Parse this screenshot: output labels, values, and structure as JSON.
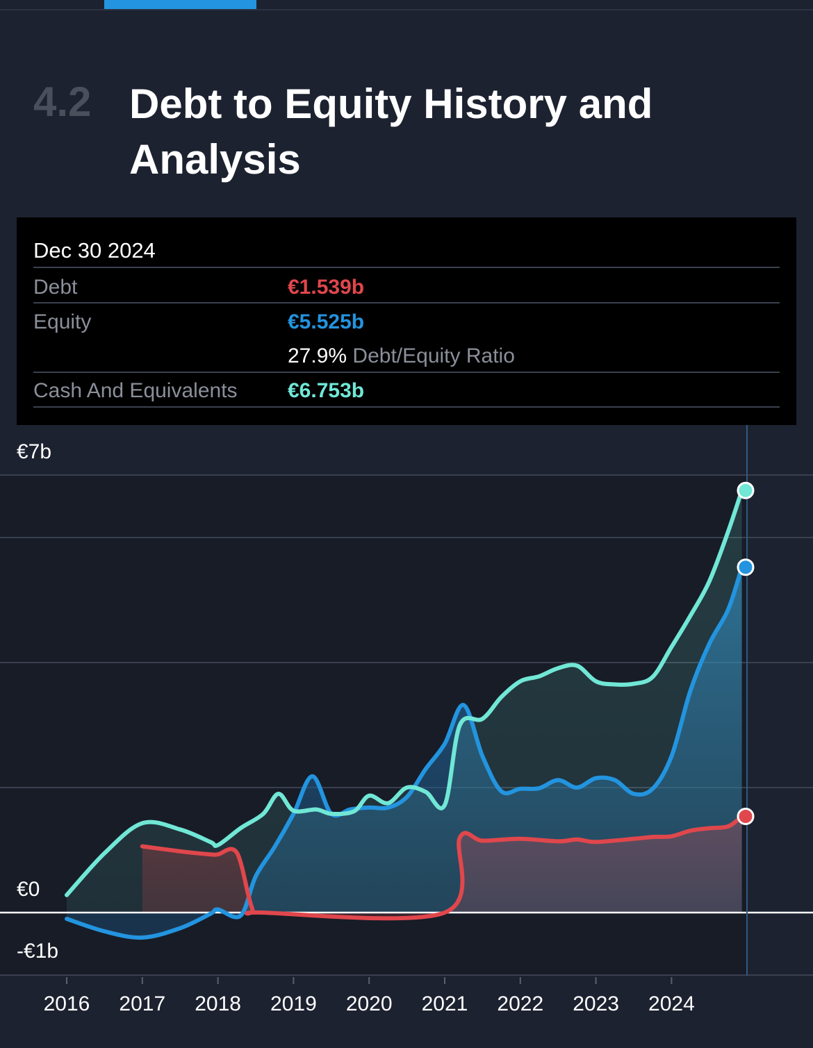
{
  "section": {
    "number": "4.2",
    "title": "Debt to Equity History and Analysis"
  },
  "tooltip": {
    "date": "Dec 30 2024",
    "debt_label": "Debt",
    "debt_value": "€1.539b",
    "equity_label": "Equity",
    "equity_value": "€5.525b",
    "ratio_value": "27.9%",
    "ratio_label": "Debt/Equity Ratio",
    "cash_label": "Cash And Equivalents",
    "cash_value": "€6.753b"
  },
  "colors": {
    "debt": "#e0474c",
    "equity": "#2394df",
    "cash": "#71e7d6",
    "accent": "#2394df"
  },
  "chart_data": {
    "type": "area",
    "y_tick_labels": [
      "€7b",
      "€0",
      "-€1b"
    ],
    "y_ticks": [
      7,
      0,
      -1
    ],
    "ylim": [
      -1,
      7
    ],
    "x_tick_labels": [
      "2016",
      "2017",
      "2018",
      "2019",
      "2020",
      "2021",
      "2022",
      "2023",
      "2024"
    ],
    "x_ticks": [
      2016,
      2017,
      2018,
      2019,
      2020,
      2021,
      2022,
      2023,
      2024
    ],
    "xlim": [
      2016,
      2025
    ],
    "series": [
      {
        "key": "cash",
        "x": [
          2016,
          2016.5,
          2017,
          2017.5,
          2017.9,
          2018,
          2018.3,
          2018.6,
          2018.8,
          2019,
          2019.3,
          2019.5,
          2019.8,
          2020,
          2020.25,
          2020.5,
          2020.75,
          2021,
          2021.2,
          2021.5,
          2021.75,
          2022,
          2022.25,
          2022.5,
          2022.75,
          2023,
          2023.25,
          2023.5,
          2023.75,
          2024,
          2024.25,
          2024.5,
          2024.75,
          2024.93
        ],
        "values": [
          0.28,
          0.95,
          1.43,
          1.33,
          1.13,
          1.08,
          1.35,
          1.58,
          1.9,
          1.63,
          1.65,
          1.58,
          1.62,
          1.87,
          1.75,
          2.0,
          1.93,
          1.72,
          3.0,
          3.1,
          3.45,
          3.7,
          3.78,
          3.91,
          3.95,
          3.7,
          3.65,
          3.66,
          3.77,
          4.25,
          4.75,
          5.3,
          6.1,
          6.753
        ]
      },
      {
        "key": "equity",
        "x": [
          2016,
          2016.5,
          2017,
          2017.5,
          2017.9,
          2018,
          2018.3,
          2018.5,
          2018.75,
          2019,
          2019.25,
          2019.5,
          2019.75,
          2020,
          2020.25,
          2020.5,
          2020.75,
          2021,
          2021.25,
          2021.5,
          2021.75,
          2022,
          2022.25,
          2022.5,
          2022.75,
          2023,
          2023.25,
          2023.5,
          2023.75,
          2024,
          2024.25,
          2024.5,
          2024.75,
          2024.93
        ],
        "values": [
          -0.1,
          -0.3,
          -0.4,
          -0.25,
          -0.02,
          0.05,
          -0.05,
          0.58,
          1.05,
          1.58,
          2.18,
          1.58,
          1.65,
          1.68,
          1.68,
          1.85,
          2.3,
          2.7,
          3.32,
          2.5,
          1.94,
          1.98,
          1.99,
          2.12,
          2.0,
          2.15,
          2.12,
          1.9,
          1.98,
          2.5,
          3.55,
          4.3,
          4.85,
          5.525
        ]
      },
      {
        "key": "debt",
        "x": [
          2017,
          2017.5,
          2017.9,
          2018,
          2018.25,
          2018.45,
          2018.6,
          2021,
          2021.2,
          2021.5,
          2022,
          2022.5,
          2022.75,
          2023,
          2023.5,
          2023.75,
          2024,
          2024.25,
          2024.5,
          2024.75,
          2024.93
        ],
        "values": [
          1.06,
          0.98,
          0.93,
          0.93,
          0.96,
          0.08,
          0.0,
          0.0,
          1.2,
          1.15,
          1.18,
          1.14,
          1.17,
          1.13,
          1.18,
          1.21,
          1.22,
          1.31,
          1.35,
          1.38,
          1.539
        ]
      }
    ]
  }
}
